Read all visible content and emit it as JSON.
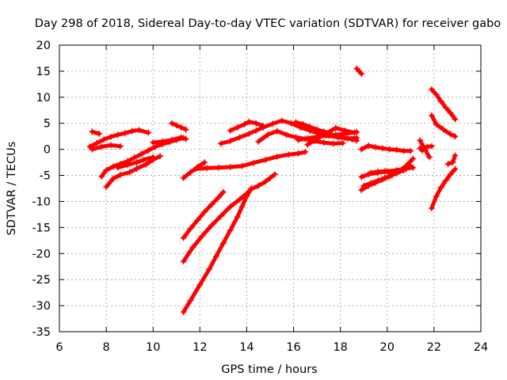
{
  "chart_data": {
    "type": "scatter",
    "title": "Day 298 of 2018, Sidereal Day-to-day VTEC variation (SDTVAR) for receiver gabo",
    "xlabel": "GPS time / hours",
    "ylabel": "SDTVAR / TECUs",
    "xlim": [
      6,
      24
    ],
    "ylim": [
      -35,
      20
    ],
    "xticks": [
      6,
      8,
      10,
      12,
      14,
      16,
      18,
      20,
      22,
      24
    ],
    "yticks": [
      20,
      15,
      10,
      5,
      0,
      -5,
      -10,
      -15,
      -20,
      -25,
      -30,
      -35
    ],
    "grid": true,
    "marker": "+",
    "color": "#ff0000",
    "series": [
      {
        "x": [
          7.3,
          7.6,
          7.9,
          8.2,
          8.5,
          8.8,
          9.1,
          9.4,
          9.8
        ],
        "y": [
          0.5,
          1.2,
          1.9,
          2.4,
          2.8,
          3.1,
          3.5,
          3.7,
          3.2
        ]
      },
      {
        "x": [
          7.4,
          7.7
        ],
        "y": [
          3.4,
          3.0
        ]
      },
      {
        "x": [
          7.4,
          7.8,
          8.2,
          8.6
        ],
        "y": [
          0.0,
          0.5,
          0.8,
          0.6
        ]
      },
      {
        "x": [
          7.8,
          8.0,
          8.3,
          8.6,
          8.9,
          9.2,
          9.5,
          9.8,
          10.1,
          10.4,
          10.7,
          11.0,
          11.3
        ],
        "y": [
          -5.2,
          -4.0,
          -3.3,
          -2.8,
          -2.3,
          -1.6,
          -0.9,
          -0.2,
          0.5,
          1.0,
          1.4,
          1.8,
          2.2
        ]
      },
      {
        "x": [
          8.0,
          8.3,
          8.6,
          9.0,
          9.3,
          9.7,
          10.0,
          10.3
        ],
        "y": [
          -7.2,
          -5.6,
          -4.9,
          -4.4,
          -3.7,
          -2.9,
          -2.0,
          -1.3
        ]
      },
      {
        "x": [
          8.5,
          8.9,
          9.3,
          9.6,
          10.0
        ],
        "y": [
          -3.5,
          -3.0,
          -2.5,
          -2.0,
          -1.5
        ]
      },
      {
        "x": [
          10.0,
          10.4,
          10.8,
          11.2,
          11.4
        ],
        "y": [
          1.3,
          1.5,
          1.8,
          2.3,
          2.0
        ]
      },
      {
        "x": [
          10.8,
          11.0,
          11.2,
          11.4
        ],
        "y": [
          5.0,
          4.6,
          4.2,
          3.8
        ]
      },
      {
        "x": [
          11.3,
          11.6,
          11.9,
          12.2,
          12.5,
          12.8,
          13.0
        ],
        "y": [
          -17.0,
          -15.2,
          -13.6,
          -12.0,
          -10.6,
          -9.2,
          -8.2
        ]
      },
      {
        "x": [
          11.3,
          11.7,
          12.1,
          12.5,
          12.9,
          13.3,
          13.7,
          14.0,
          14.2,
          14.5,
          14.8,
          15.0,
          15.2
        ],
        "y": [
          -21.5,
          -18.8,
          -16.6,
          -14.6,
          -12.8,
          -11.0,
          -9.6,
          -8.5,
          -7.6,
          -7.0,
          -6.2,
          -5.5,
          -4.8
        ]
      },
      {
        "x": [
          11.3,
          11.6,
          12.0,
          12.4,
          12.7,
          13.0,
          13.3,
          13.6,
          13.8,
          14.0,
          14.2
        ],
        "y": [
          -31.2,
          -29.0,
          -26.0,
          -23.0,
          -20.5,
          -18.0,
          -15.5,
          -13.0,
          -11.0,
          -9.0,
          -7.5
        ]
      },
      {
        "x": [
          11.3,
          11.6,
          11.9,
          12.2
        ],
        "y": [
          -5.5,
          -4.4,
          -3.4,
          -2.5
        ]
      },
      {
        "x": [
          11.8,
          12.3,
          12.8,
          13.3,
          13.8,
          14.3,
          14.8,
          15.3,
          15.8,
          16.2,
          16.5
        ],
        "y": [
          -3.8,
          -3.6,
          -3.5,
          -3.4,
          -3.2,
          -2.6,
          -2.0,
          -1.4,
          -1.0,
          -0.8,
          -0.5
        ]
      },
      {
        "x": [
          12.9,
          13.3,
          13.7,
          14.1,
          14.4,
          14.7,
          15.1,
          15.5,
          15.9,
          16.3,
          16.7,
          17.1,
          17.5,
          17.9,
          18.3,
          18.7
        ],
        "y": [
          1.1,
          1.6,
          2.3,
          3.0,
          3.6,
          4.2,
          4.9,
          5.5,
          5.0,
          4.2,
          3.6,
          3.0,
          2.6,
          2.3,
          2.1,
          2.2
        ]
      },
      {
        "x": [
          13.3,
          13.6,
          13.9,
          14.1,
          14.4,
          14.7
        ],
        "y": [
          3.6,
          4.2,
          4.8,
          5.3,
          5.0,
          4.5
        ]
      },
      {
        "x": [
          14.5,
          14.9,
          15.3,
          15.7,
          16.1,
          16.5,
          16.9,
          17.3,
          17.7,
          18.1
        ],
        "y": [
          1.5,
          2.8,
          3.5,
          2.8,
          2.3,
          2.0,
          1.6,
          1.3,
          1.1,
          1.2
        ]
      },
      {
        "x": [
          16.1,
          16.4,
          16.7,
          17.0,
          17.3,
          17.6,
          17.9,
          18.2,
          18.5,
          18.7
        ],
        "y": [
          5.2,
          4.8,
          4.3,
          3.8,
          3.4,
          2.9,
          2.5,
          2.2,
          1.9,
          1.7
        ]
      },
      {
        "x": [
          16.6,
          17.0,
          17.4,
          17.8,
          18.2,
          18.6
        ],
        "y": [
          0.9,
          2.0,
          3.1,
          4.1,
          3.6,
          3.2
        ]
      },
      {
        "x": [
          16.2,
          16.6,
          17.0,
          17.4,
          17.8,
          18.2,
          18.7
        ],
        "y": [
          1.8,
          2.1,
          2.4,
          2.6,
          2.8,
          3.0,
          3.3
        ]
      },
      {
        "x": [
          18.7,
          18.8,
          18.9
        ],
        "y": [
          15.5,
          15.0,
          14.5
        ]
      },
      {
        "x": [
          18.9,
          19.2,
          19.5,
          19.8,
          20.1,
          20.4,
          20.7,
          21.0
        ],
        "y": [
          0.0,
          0.7,
          0.4,
          0.2,
          0.0,
          -0.1,
          -0.3,
          -0.3
        ]
      },
      {
        "x": [
          18.9,
          19.2,
          19.6,
          20.0,
          20.4,
          20.8,
          21.1
        ],
        "y": [
          -5.3,
          -4.8,
          -4.5,
          -4.2,
          -4.0,
          -3.7,
          -3.5
        ]
      },
      {
        "x": [
          18.9,
          19.2,
          19.5,
          19.8,
          20.1,
          20.4,
          20.7,
          21.0
        ],
        "y": [
          -7.8,
          -7.0,
          -6.4,
          -5.8,
          -5.2,
          -4.6,
          -4.0,
          -3.2
        ]
      },
      {
        "x": [
          19.0,
          19.3,
          19.6,
          19.9,
          20.2,
          20.5,
          20.8,
          21.1
        ],
        "y": [
          -7.0,
          -6.5,
          -6.0,
          -5.5,
          -5.0,
          -4.2,
          -3.2,
          -1.8
        ]
      },
      {
        "x": [
          19.3,
          19.6,
          19.9,
          20.2,
          20.5,
          20.8
        ],
        "y": [
          -4.5,
          -4.3,
          -4.2,
          -4.6,
          -4.2,
          -3.8
        ]
      },
      {
        "x": [
          21.4,
          21.5,
          21.7,
          21.9
        ],
        "y": [
          0.2,
          -0.2,
          0.5,
          0.6
        ]
      },
      {
        "x": [
          21.4,
          21.8
        ],
        "y": [
          1.7,
          -1.5
        ]
      },
      {
        "x": [
          21.9,
          22.1,
          22.3,
          22.5,
          22.7,
          22.9
        ],
        "y": [
          11.5,
          10.5,
          9.2,
          8.0,
          7.0,
          5.8
        ]
      },
      {
        "x": [
          21.9,
          22.1,
          22.4,
          22.7,
          22.9
        ],
        "y": [
          6.5,
          4.8,
          3.8,
          2.9,
          2.5
        ]
      },
      {
        "x": [
          21.9,
          22.1,
          22.3,
          22.5,
          22.7,
          22.9
        ],
        "y": [
          -11.3,
          -9.0,
          -7.3,
          -6.0,
          -4.8,
          -3.8
        ]
      },
      {
        "x": [
          22.6,
          22.8,
          22.9
        ],
        "y": [
          -2.8,
          -2.5,
          -1.2
        ]
      }
    ]
  }
}
